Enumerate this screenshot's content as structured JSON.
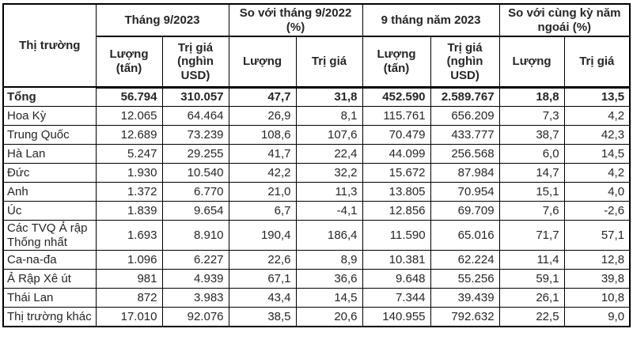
{
  "colors": {
    "background": "#ffffff",
    "border": "#000000",
    "text": "#262626"
  },
  "chart_data": {
    "type": "table",
    "corner_header": "Thị trường",
    "column_groups": [
      {
        "label": "Tháng 9/2023",
        "subcolumns": [
          "Lượng (tấn)",
          "Trị giá (nghìn USD)"
        ]
      },
      {
        "label": "So với tháng 9/2022 (%)",
        "subcolumns": [
          "Lượng",
          "Trị giá"
        ]
      },
      {
        "label": "9 tháng năm 2023",
        "subcolumns": [
          "Lượng (tấn)",
          "Trị giá (nghìn USD)"
        ]
      },
      {
        "label": "So với cùng kỳ năm ngoái (%)",
        "subcolumns": [
          "Lượng",
          "Trị giá"
        ]
      }
    ],
    "rows": [
      {
        "label": "Tổng",
        "bold": true,
        "values": [
          "56.794",
          "310.057",
          "47,7",
          "31,8",
          "452.590",
          "2.589.767",
          "18,8",
          "13,5"
        ]
      },
      {
        "label": "Hoa Kỳ",
        "bold": false,
        "values": [
          "12.065",
          "64.464",
          "26,9",
          "8,1",
          "115.761",
          "656.209",
          "7,3",
          "4,2"
        ]
      },
      {
        "label": "Trung Quốc",
        "bold": false,
        "values": [
          "12.689",
          "73.239",
          "108,6",
          "107,6",
          "70.479",
          "433.777",
          "38,7",
          "42,3"
        ]
      },
      {
        "label": "Hà Lan",
        "bold": false,
        "values": [
          "5.247",
          "29.255",
          "41,7",
          "22,4",
          "44.099",
          "256.568",
          "6,0",
          "14,5"
        ]
      },
      {
        "label": "Đức",
        "bold": false,
        "values": [
          "1.930",
          "10.540",
          "42,2",
          "32,2",
          "15.672",
          "87.984",
          "14,7",
          "4,2"
        ]
      },
      {
        "label": "Anh",
        "bold": false,
        "values": [
          "1.372",
          "6.770",
          "21,0",
          "11,3",
          "13.805",
          "70.954",
          "15,1",
          "4,0"
        ]
      },
      {
        "label": "Úc",
        "bold": false,
        "values": [
          "1.839",
          "9.654",
          "6,7",
          "-4,1",
          "12.856",
          "69.709",
          "7,6",
          "-2,6"
        ]
      },
      {
        "label": "Các TVQ Ả rập Thống nhất",
        "bold": false,
        "values": [
          "1.693",
          "8.910",
          "190,4",
          "186,4",
          "11.590",
          "65.016",
          "71,7",
          "57,1"
        ]
      },
      {
        "label": "Ca-na-đa",
        "bold": false,
        "values": [
          "1.096",
          "6.227",
          "22,6",
          "8,9",
          "10.381",
          "62.224",
          "11,4",
          "12,8"
        ]
      },
      {
        "label": "Ả Rập Xê út",
        "bold": false,
        "values": [
          "981",
          "4.939",
          "67,1",
          "36,6",
          "9.648",
          "55.256",
          "59,1",
          "39,8"
        ]
      },
      {
        "label": "Thái Lan",
        "bold": false,
        "values": [
          "872",
          "3.983",
          "43,4",
          "14,5",
          "7.344",
          "39.439",
          "26,1",
          "10,8"
        ]
      },
      {
        "label": "Thị trường khác",
        "bold": false,
        "values": [
          "17.010",
          "92.076",
          "38,5",
          "20,6",
          "140.955",
          "792.632",
          "22,5",
          "9,0"
        ]
      }
    ]
  }
}
